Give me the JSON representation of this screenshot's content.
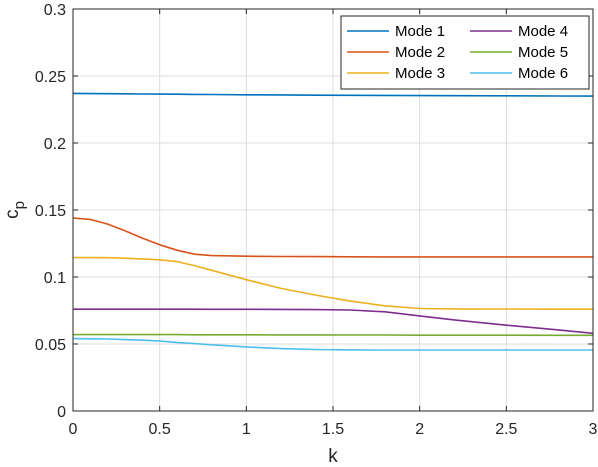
{
  "chart_data": {
    "type": "line",
    "title": "",
    "xlabel": "k",
    "ylabel_main": "c",
    "ylabel_sub": "p",
    "xlim": [
      0,
      3
    ],
    "ylim": [
      0,
      0.3
    ],
    "xticks": [
      0,
      0.5,
      1,
      1.5,
      2,
      2.5,
      3
    ],
    "xtick_labels": [
      "0",
      "0.5",
      "1",
      "1.5",
      "2",
      "2.5",
      "3"
    ],
    "yticks": [
      0,
      0.05,
      0.1,
      0.15,
      0.2,
      0.25,
      0.3
    ],
    "ytick_labels": [
      "0",
      "0.05",
      "0.1",
      "0.15",
      "0.2",
      "0.25",
      "0.3"
    ],
    "grid": true,
    "legend_position": "top-right",
    "x": [
      0,
      0.1,
      0.2,
      0.3,
      0.4,
      0.5,
      0.6,
      0.7,
      0.8,
      1.0,
      1.2,
      1.4,
      1.6,
      1.8,
      2.0,
      2.2,
      2.5,
      2.8,
      3.0
    ],
    "series": [
      {
        "name": "Mode 1",
        "color": "#0072BD",
        "values": [
          0.237,
          0.2369,
          0.2368,
          0.2367,
          0.2366,
          0.2365,
          0.2364,
          0.2363,
          0.2362,
          0.236,
          0.2359,
          0.2357,
          0.2356,
          0.2355,
          0.2354,
          0.2353,
          0.2352,
          0.2351,
          0.235
        ]
      },
      {
        "name": "Mode 2",
        "color": "#D95319",
        "values": [
          0.144,
          0.143,
          0.1395,
          0.1345,
          0.129,
          0.124,
          0.12,
          0.117,
          0.116,
          0.1155,
          0.1153,
          0.1152,
          0.1151,
          0.115,
          0.115,
          0.115,
          0.115,
          0.115,
          0.115
        ]
      },
      {
        "name": "Mode 3",
        "color": "#EDB120",
        "values": [
          0.1145,
          0.1145,
          0.1144,
          0.114,
          0.1135,
          0.1128,
          0.1115,
          0.1085,
          0.105,
          0.098,
          0.0915,
          0.0865,
          0.082,
          0.0785,
          0.0765,
          0.0762,
          0.0761,
          0.076,
          0.076
        ]
      },
      {
        "name": "Mode 4",
        "color": "#7E2F8E",
        "values": [
          0.076,
          0.076,
          0.076,
          0.076,
          0.076,
          0.076,
          0.076,
          0.076,
          0.0759,
          0.0759,
          0.0758,
          0.0757,
          0.0754,
          0.074,
          0.071,
          0.068,
          0.064,
          0.0605,
          0.058
        ]
      },
      {
        "name": "Mode 5",
        "color": "#77AC30",
        "values": [
          0.057,
          0.057,
          0.057,
          0.057,
          0.057,
          0.057,
          0.057,
          0.0569,
          0.0569,
          0.0569,
          0.0568,
          0.0568,
          0.0567,
          0.0567,
          0.0566,
          0.0566,
          0.0566,
          0.0565,
          0.0565
        ]
      },
      {
        "name": "Mode 6",
        "color": "#4DBEEE",
        "values": [
          0.054,
          0.0539,
          0.0537,
          0.0533,
          0.0528,
          0.0522,
          0.0512,
          0.0503,
          0.0494,
          0.0478,
          0.0466,
          0.0459,
          0.0456,
          0.0455,
          0.0455,
          0.0455,
          0.0455,
          0.0455,
          0.0455
        ]
      }
    ],
    "legend_layout": [
      [
        0,
        3
      ],
      [
        1,
        4
      ],
      [
        2,
        5
      ]
    ]
  }
}
